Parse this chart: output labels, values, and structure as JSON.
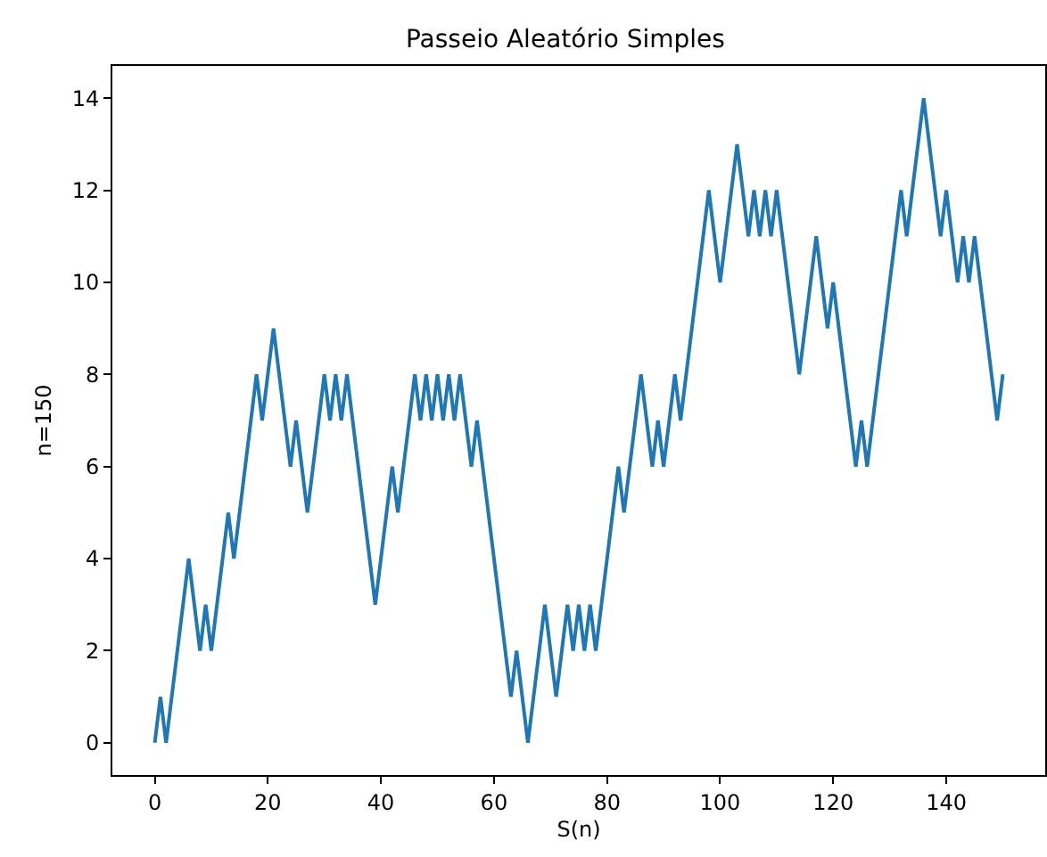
{
  "chart_data": {
    "type": "line",
    "title": "Passeio Aleatório Simples",
    "xlabel": "S(n)",
    "ylabel": "n=150",
    "series": [
      {
        "color": "#1f77b4",
        "x": [
          0,
          1,
          2,
          6,
          8,
          9,
          10,
          13,
          14,
          18,
          19,
          21,
          24,
          25,
          27,
          30,
          31,
          32,
          33,
          34,
          39,
          42,
          43,
          46,
          47,
          48,
          49,
          50,
          51,
          52,
          53,
          54,
          56,
          57,
          63,
          64,
          66,
          69,
          71,
          73,
          74,
          75,
          76,
          77,
          78,
          82,
          83,
          86,
          88,
          89,
          90,
          92,
          93,
          98,
          100,
          103,
          105,
          106,
          107,
          108,
          109,
          110,
          114,
          117,
          119,
          120,
          124,
          125,
          126,
          132,
          133,
          136,
          139,
          140,
          142,
          143,
          144,
          145,
          149,
          150
        ],
        "values": [
          0,
          1,
          0,
          4,
          2,
          3,
          2,
          5,
          4,
          8,
          7,
          9,
          6,
          7,
          5,
          8,
          7,
          8,
          7,
          8,
          3,
          6,
          5,
          8,
          7,
          8,
          7,
          8,
          7,
          8,
          7,
          8,
          6,
          7,
          1,
          2,
          0,
          3,
          1,
          3,
          2,
          3,
          2,
          3,
          2,
          6,
          5,
          8,
          6,
          7,
          6,
          8,
          7,
          12,
          10,
          13,
          11,
          12,
          11,
          12,
          11,
          12,
          8,
          11,
          9,
          10,
          6,
          7,
          6,
          12,
          11,
          14,
          11,
          12,
          10,
          11,
          10,
          11,
          7,
          8
        ]
      }
    ],
    "xlim": [
      -7.5,
      157.5
    ],
    "ylim": [
      -0.7,
      14.7
    ],
    "xticks": [
      0,
      20,
      40,
      60,
      80,
      100,
      120,
      140
    ],
    "yticks": [
      0,
      2,
      4,
      6,
      8,
      10,
      12,
      14
    ],
    "grid": false,
    "marker": "none",
    "line_style": "solid"
  }
}
